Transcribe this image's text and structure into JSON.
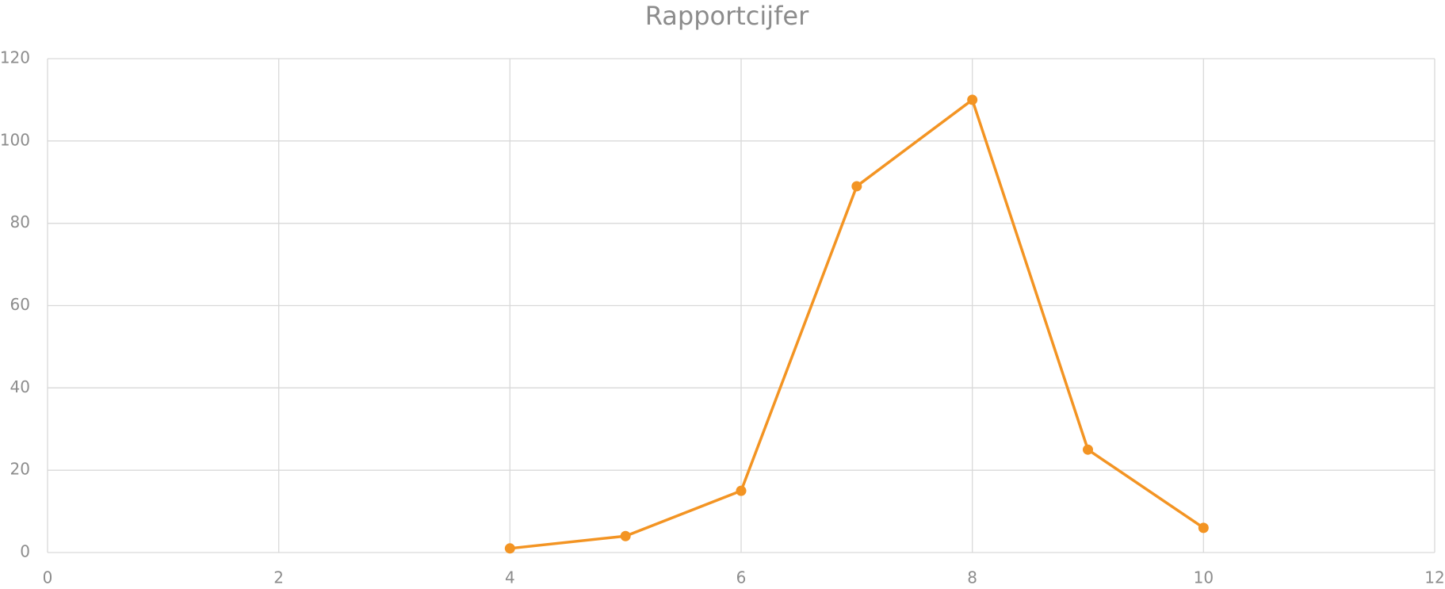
{
  "chart_data": {
    "type": "line",
    "title": "Rapportcijfer",
    "x": [
      4,
      5,
      6,
      7,
      8,
      9,
      10
    ],
    "series": [
      {
        "name": "Rapportcijfer",
        "color": "#f39423",
        "values": [
          1,
          4,
          15,
          89,
          110,
          25,
          6
        ]
      }
    ],
    "xlim": [
      0,
      12
    ],
    "xticks": [
      0,
      2,
      4,
      6,
      8,
      10,
      12
    ],
    "ylim": [
      0,
      120
    ],
    "yticks": [
      0,
      20,
      40,
      60,
      80,
      100,
      120
    ],
    "grid": true,
    "markers": true
  }
}
